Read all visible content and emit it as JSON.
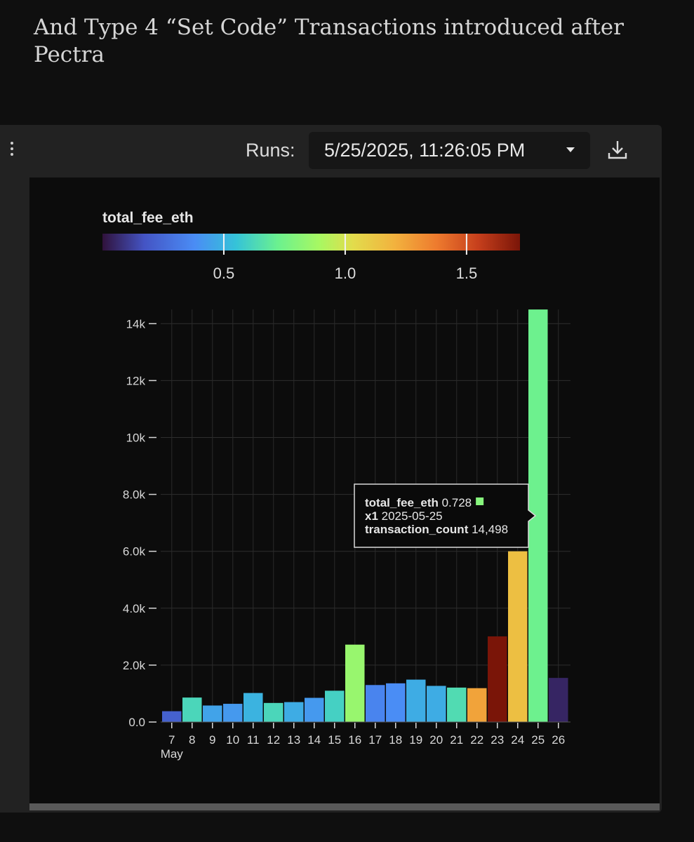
{
  "heading": "And Type 4 “Set Code” Transactions introduced after Pectra",
  "toolbar": {
    "menu_icon": "vertical-ellipsis-icon",
    "runs_label": "Runs:",
    "runs_value": "5/25/2025, 11:26:05 PM",
    "download_icon": "download-icon"
  },
  "colors": {
    "background": "#0f0f0f",
    "card": "#222222",
    "plot_bg": "#0c0c0c",
    "tooltip_marker": "#87f57d"
  },
  "chart_data": {
    "type": "bar",
    "title": "",
    "xlabel": "",
    "ylabel": "",
    "x_month_label": "May",
    "categories": [
      "7",
      "8",
      "9",
      "10",
      "11",
      "12",
      "13",
      "14",
      "15",
      "16",
      "17",
      "18",
      "19",
      "20",
      "21",
      "22",
      "23",
      "24",
      "25",
      "26"
    ],
    "dates": [
      "2025-05-07",
      "2025-05-08",
      "2025-05-09",
      "2025-05-10",
      "2025-05-11",
      "2025-05-12",
      "2025-05-13",
      "2025-05-14",
      "2025-05-15",
      "2025-05-16",
      "2025-05-17",
      "2025-05-18",
      "2025-05-19",
      "2025-05-20",
      "2025-05-21",
      "2025-05-22",
      "2025-05-23",
      "2025-05-24",
      "2025-05-25",
      "2025-05-26"
    ],
    "values": [
      380,
      860,
      580,
      640,
      1020,
      670,
      700,
      850,
      1100,
      2720,
      1300,
      1360,
      1490,
      1270,
      1210,
      1190,
      3010,
      6000,
      14498,
      1550
    ],
    "color_values": [
      0.22,
      0.62,
      0.45,
      0.42,
      0.5,
      0.62,
      0.48,
      0.42,
      0.6,
      0.85,
      0.35,
      0.38,
      0.48,
      0.48,
      0.64,
      1.25,
      1.72,
      1.15,
      0.728,
      0.05
    ],
    "color_field": "total_fee_eth",
    "color_ticks": [
      0.5,
      1.0,
      1.5
    ],
    "color_ticks_labels": [
      "0.5",
      "1.0",
      "1.5"
    ],
    "color_domain": [
      0.0,
      1.72
    ],
    "color_scale": "turbo",
    "y_ticks": [
      0,
      2000,
      4000,
      6000,
      8000,
      10000,
      12000,
      14000
    ],
    "y_tick_labels": [
      "0.0",
      "2.0k",
      "4.0k",
      "6.0k",
      "8.0k",
      "10k",
      "12k",
      "14k"
    ],
    "ylim": [
      0,
      14500
    ],
    "grid": true,
    "legend": "top-left colorbar",
    "tooltip": {
      "category_index": 18,
      "rows": [
        {
          "key": "total_fee_eth",
          "value": "0.728"
        },
        {
          "key": "x1",
          "value": "2025-05-25"
        },
        {
          "key": "transaction_count",
          "value": "14,498"
        }
      ]
    }
  }
}
